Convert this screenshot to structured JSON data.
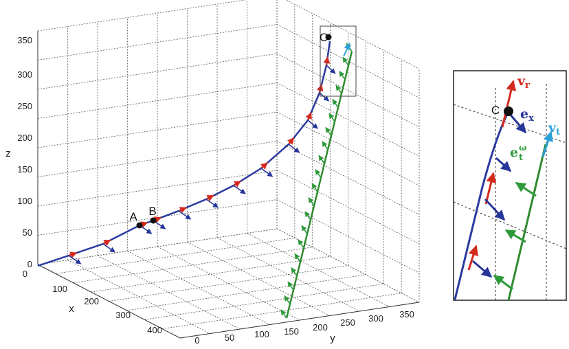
{
  "main_plot": {
    "axes": {
      "x": {
        "label": "x",
        "ticks": [
          "0",
          "100",
          "200",
          "300",
          "400"
        ],
        "range": [
          0,
          450
        ]
      },
      "y": {
        "label": "y",
        "ticks": [
          "0",
          "50",
          "100",
          "150",
          "200",
          "250",
          "300",
          "350"
        ],
        "range": [
          0,
          370
        ]
      },
      "z": {
        "label": "z",
        "ticks": [
          "0",
          "50",
          "100",
          "150",
          "200",
          "250",
          "300",
          "350"
        ],
        "range": [
          0,
          360
        ]
      }
    },
    "grid": true,
    "point_labels": {
      "a": "A",
      "b": "B",
      "c": "C"
    },
    "colors": {
      "trajectory": "#2a3aa0",
      "green_line": "#2e8b2e",
      "red_arrow": "#d42a1e",
      "blue_arrow": "#27369a",
      "green_arrow": "#2e9a3a",
      "cyan_arrow": "#2ea0d8",
      "grid": "#555555",
      "point": "#111111"
    }
  },
  "inset": {
    "labels": {
      "c": "C",
      "vr_main": "v",
      "vr_sub": "r",
      "ex_main": "e",
      "ex_sub": "x",
      "vt_main": "v",
      "vt_sub": "t",
      "et_main": "e",
      "et_sub": "t",
      "et_sup": "ω"
    }
  }
}
